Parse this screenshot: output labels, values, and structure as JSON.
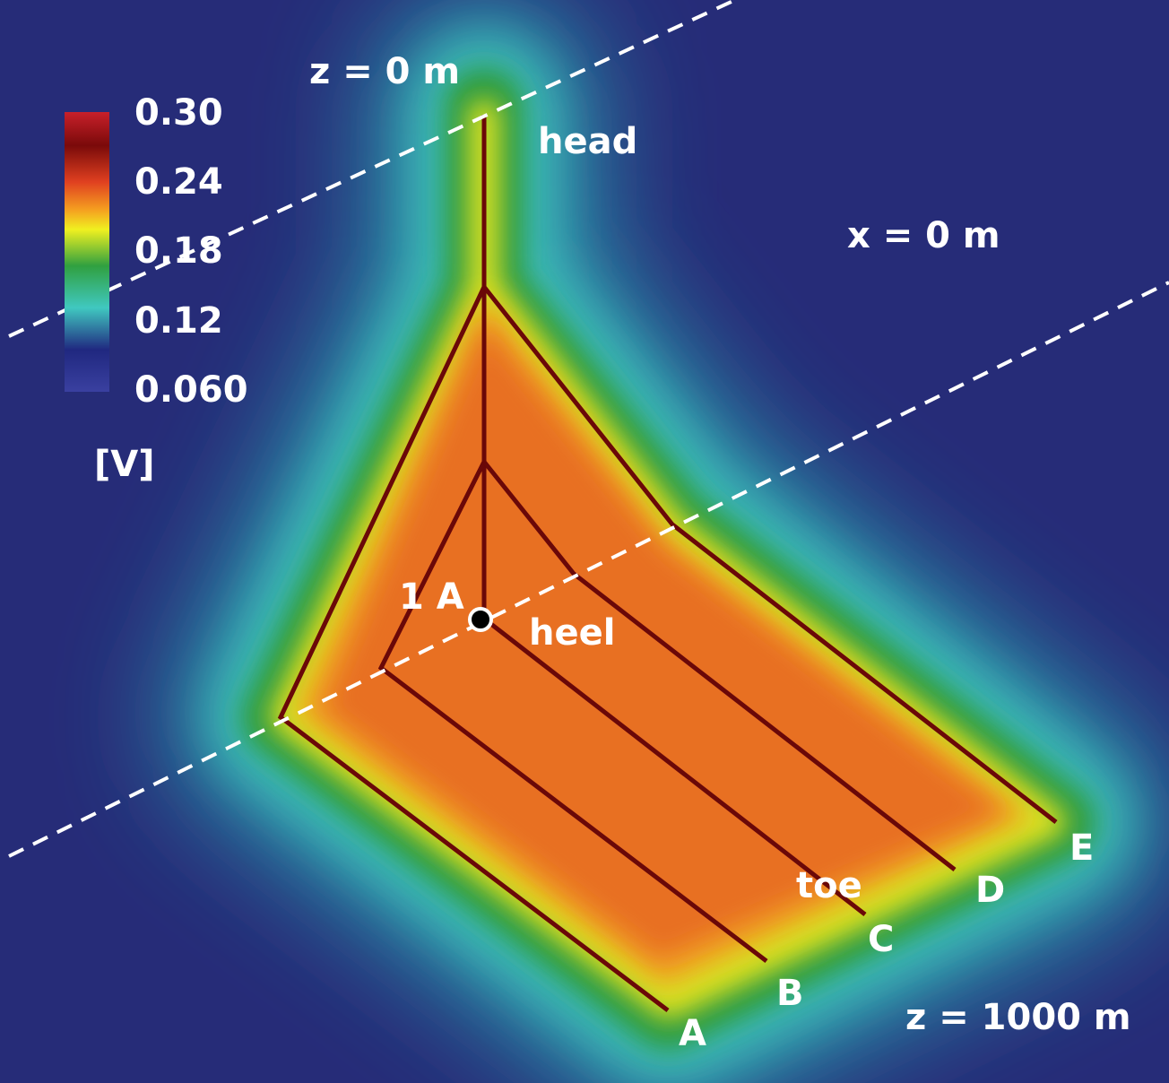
{
  "labels": {
    "top_depth": "z = 0 m",
    "head": "head",
    "x_origin": "x = 0 m",
    "current": "1 A",
    "heel": "heel",
    "toe": "toe",
    "bottom_depth": "z = 1000 m"
  },
  "wells": [
    "A",
    "B",
    "C",
    "D",
    "E"
  ],
  "colorbar": {
    "ticks": [
      "0.30",
      "0.24",
      "0.18",
      "0.12",
      "0.060"
    ],
    "unit": "[V]"
  }
}
